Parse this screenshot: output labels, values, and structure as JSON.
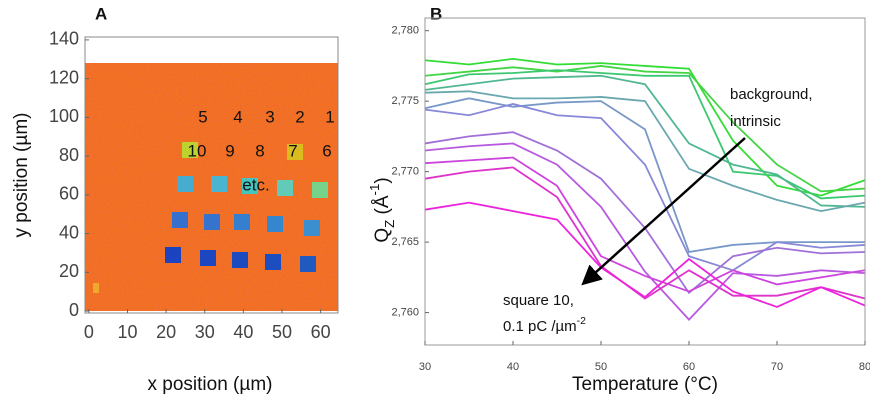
{
  "chart_data": [
    {
      "type": "image",
      "panel": "A",
      "xlabel": "x position (µm)",
      "ylabel": "y position (µm)",
      "xlim": [
        -1,
        64.5
      ],
      "ylim": [
        -1,
        141.5
      ],
      "xticks": [
        0,
        10,
        20,
        30,
        40,
        50,
        60
      ],
      "yticks": [
        0,
        20,
        40,
        60,
        80,
        100,
        120,
        140
      ],
      "annotations": [
        "5",
        "4",
        "3",
        "2",
        "1",
        "10",
        "9",
        "8",
        "7",
        "6",
        "etc."
      ]
    },
    {
      "type": "line",
      "panel": "B",
      "xlabel": "Temperature (°C)",
      "ylabel": {
        "main": "Q",
        "sub": "Z",
        "mid": " (Å",
        "sup": "-1",
        "end": ")"
      },
      "xlim": [
        30,
        80
      ],
      "ylim": [
        2.7577,
        2.7809
      ],
      "xticks": [
        30,
        40,
        50,
        60,
        70,
        80
      ],
      "yticks": [
        {
          "value": 2.76,
          "label": "2,760"
        },
        {
          "value": 2.765,
          "label": "2,765"
        },
        {
          "value": 2.77,
          "label": "2,770"
        },
        {
          "value": 2.775,
          "label": "2,775"
        },
        {
          "value": 2.78,
          "label": "2,780"
        }
      ],
      "x": [
        30,
        35,
        40,
        45,
        50,
        55,
        60,
        65,
        70,
        75,
        80
      ],
      "series": [
        {
          "color": "#33dd33",
          "values": [
            2.7779,
            2.7776,
            2.778,
            2.7776,
            2.7777,
            2.7775,
            2.7773,
            2.7722,
            2.769,
            2.7683,
            2.7694
          ]
        },
        {
          "color": "#44d444",
          "values": [
            2.7768,
            2.7771,
            2.7774,
            2.7771,
            2.7775,
            2.7771,
            2.777,
            2.7735,
            2.7705,
            2.7686,
            2.7688
          ]
        },
        {
          "color": "#3cc870",
          "values": [
            2.7762,
            2.7769,
            2.777,
            2.7772,
            2.777,
            2.7768,
            2.7768,
            2.77,
            2.7697,
            2.7681,
            2.7683
          ]
        },
        {
          "color": "#50b890",
          "values": [
            2.7758,
            2.7762,
            2.7766,
            2.7767,
            2.7768,
            2.7762,
            2.772,
            2.7705,
            2.7698,
            2.7676,
            2.7675
          ]
        },
        {
          "color": "#6aa8b0",
          "values": [
            2.7756,
            2.7757,
            2.7752,
            2.7752,
            2.7753,
            2.775,
            2.7702,
            2.769,
            2.768,
            2.7672,
            2.7678
          ]
        },
        {
          "color": "#7898c8",
          "values": [
            2.7745,
            2.7752,
            2.7746,
            2.7749,
            2.775,
            2.773,
            2.7643,
            2.7648,
            2.765,
            2.765,
            2.765
          ]
        },
        {
          "color": "#8888d8",
          "values": [
            2.7744,
            2.774,
            2.7748,
            2.774,
            2.7738,
            2.7705,
            2.764,
            2.763,
            2.765,
            2.7646,
            2.7648
          ]
        },
        {
          "color": "#a070d8",
          "values": [
            2.772,
            2.7725,
            2.7728,
            2.7715,
            2.7695,
            2.766,
            2.7614,
            2.764,
            2.7646,
            2.7642,
            2.7643
          ]
        },
        {
          "color": "#b85ae0",
          "values": [
            2.7715,
            2.7718,
            2.772,
            2.7705,
            2.7675,
            2.7629,
            2.7595,
            2.7628,
            2.7626,
            2.763,
            2.7628
          ]
        },
        {
          "color": "#cc44dd",
          "values": [
            2.7706,
            2.7708,
            2.771,
            2.769,
            2.764,
            2.7626,
            2.7615,
            2.763,
            2.762,
            2.7625,
            2.763
          ]
        },
        {
          "color": "#dd33cc",
          "values": [
            2.7695,
            2.77,
            2.7703,
            2.7682,
            2.7633,
            2.761,
            2.763,
            2.7612,
            2.7612,
            2.7618,
            2.761
          ]
        },
        {
          "color": "#ee22dd",
          "values": [
            2.7673,
            2.7678,
            2.7672,
            2.7666,
            2.7632,
            2.7611,
            2.7638,
            2.7615,
            2.7604,
            2.7618,
            2.7605
          ]
        }
      ],
      "annotations": [
        "background,",
        "intrinsic",
        "square 10,",
        {
          "main": "0.1 pC /µm",
          "sup": "-2"
        }
      ]
    }
  ]
}
